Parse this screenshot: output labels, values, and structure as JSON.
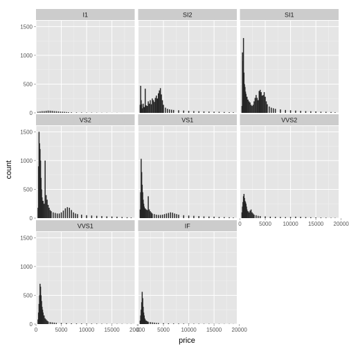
{
  "chart_data": {
    "type": "bar",
    "subtype": "faceted-histogram",
    "xlabel": "price",
    "ylabel": "count",
    "xlim": [
      0,
      19500
    ],
    "ylim": [
      0,
      1600
    ],
    "x_ticks": [
      "0",
      "5000",
      "10000",
      "15000",
      "20000"
    ],
    "y_ticks": [
      "0",
      "500",
      "1000",
      "1500"
    ],
    "layout": "3x3 facet grid",
    "colors": {
      "bars": "#252525",
      "panel_background": "#e5e5e5",
      "strip_background": "#cccccc",
      "grid": "#ffffff"
    },
    "facets": [
      {
        "label": "I1",
        "points": [
          [
            400,
            20
          ],
          [
            800,
            25
          ],
          [
            1200,
            30
          ],
          [
            1600,
            30
          ],
          [
            2000,
            35
          ],
          [
            2400,
            40
          ],
          [
            2800,
            38
          ],
          [
            3200,
            35
          ],
          [
            3600,
            30
          ],
          [
            4000,
            28
          ],
          [
            4400,
            25
          ],
          [
            4800,
            22
          ],
          [
            5200,
            20
          ],
          [
            5600,
            18
          ],
          [
            6000,
            15
          ],
          [
            6400,
            12
          ],
          [
            7000,
            10
          ],
          [
            8000,
            8
          ],
          [
            9000,
            7
          ],
          [
            10000,
            6
          ],
          [
            11000,
            5
          ],
          [
            12000,
            4
          ],
          [
            13000,
            3
          ],
          [
            14000,
            3
          ],
          [
            15000,
            2
          ],
          [
            16000,
            2
          ],
          [
            17000,
            1
          ]
        ]
      },
      {
        "label": "SI2",
        "points": [
          [
            400,
            140
          ],
          [
            500,
            470
          ],
          [
            600,
            220
          ],
          [
            700,
            150
          ],
          [
            800,
            80
          ],
          [
            1000,
            160
          ],
          [
            1200,
            100
          ],
          [
            1400,
            420
          ],
          [
            1600,
            130
          ],
          [
            1800,
            120
          ],
          [
            2000,
            200
          ],
          [
            2200,
            160
          ],
          [
            2400,
            220
          ],
          [
            2600,
            150
          ],
          [
            2800,
            250
          ],
          [
            3000,
            220
          ],
          [
            3200,
            190
          ],
          [
            3400,
            260
          ],
          [
            3600,
            300
          ],
          [
            3800,
            250
          ],
          [
            4000,
            340
          ],
          [
            4200,
            390
          ],
          [
            4400,
            430
          ],
          [
            4600,
            320
          ],
          [
            4800,
            220
          ],
          [
            5000,
            140
          ],
          [
            5400,
            90
          ],
          [
            5800,
            70
          ],
          [
            6200,
            60
          ],
          [
            6600,
            55
          ],
          [
            7000,
            50
          ],
          [
            8000,
            45
          ],
          [
            9000,
            40
          ],
          [
            10000,
            35
          ],
          [
            11000,
            30
          ],
          [
            12000,
            28
          ],
          [
            13000,
            25
          ],
          [
            14000,
            22
          ],
          [
            15000,
            20
          ],
          [
            16000,
            18
          ],
          [
            17000,
            15
          ],
          [
            18000,
            12
          ],
          [
            18800,
            10
          ]
        ]
      },
      {
        "label": "SI1",
        "points": [
          [
            400,
            120
          ],
          [
            500,
            1050
          ],
          [
            600,
            900
          ],
          [
            700,
            1300
          ],
          [
            800,
            700
          ],
          [
            900,
            500
          ],
          [
            1000,
            450
          ],
          [
            1100,
            370
          ],
          [
            1200,
            330
          ],
          [
            1400,
            280
          ],
          [
            1600,
            230
          ],
          [
            1800,
            200
          ],
          [
            2000,
            180
          ],
          [
            2200,
            140
          ],
          [
            2400,
            120
          ],
          [
            2600,
            140
          ],
          [
            2800,
            200
          ],
          [
            3000,
            260
          ],
          [
            3200,
            310
          ],
          [
            3400,
            260
          ],
          [
            3600,
            220
          ],
          [
            3800,
            380
          ],
          [
            4000,
            400
          ],
          [
            4200,
            360
          ],
          [
            4400,
            300
          ],
          [
            4600,
            310
          ],
          [
            4800,
            360
          ],
          [
            5000,
            280
          ],
          [
            5200,
            200
          ],
          [
            5400,
            150
          ],
          [
            5800,
            110
          ],
          [
            6200,
            90
          ],
          [
            6600,
            80
          ],
          [
            7000,
            70
          ],
          [
            8000,
            60
          ],
          [
            9000,
            50
          ],
          [
            10000,
            45
          ],
          [
            11000,
            40
          ],
          [
            12000,
            35
          ],
          [
            13000,
            30
          ],
          [
            14000,
            28
          ],
          [
            15000,
            25
          ],
          [
            16000,
            20
          ],
          [
            17000,
            18
          ],
          [
            18000,
            15
          ],
          [
            18800,
            10
          ]
        ]
      },
      {
        "label": "VS2",
        "points": [
          [
            400,
            180
          ],
          [
            500,
            900
          ],
          [
            600,
            1500
          ],
          [
            700,
            1300
          ],
          [
            800,
            1200
          ],
          [
            900,
            1000
          ],
          [
            1000,
            700
          ],
          [
            1100,
            500
          ],
          [
            1200,
            360
          ],
          [
            1400,
            300
          ],
          [
            1600,
            250
          ],
          [
            1800,
            1000
          ],
          [
            2000,
            400
          ],
          [
            2200,
            320
          ],
          [
            2400,
            230
          ],
          [
            2600,
            180
          ],
          [
            2800,
            140
          ],
          [
            3000,
            120
          ],
          [
            3400,
            100
          ],
          [
            3800,
            90
          ],
          [
            4200,
            80
          ],
          [
            4600,
            80
          ],
          [
            5000,
            100
          ],
          [
            5400,
            130
          ],
          [
            5800,
            170
          ],
          [
            6200,
            190
          ],
          [
            6600,
            180
          ],
          [
            7000,
            140
          ],
          [
            7400,
            100
          ],
          [
            7800,
            80
          ],
          [
            8200,
            70
          ],
          [
            9000,
            60
          ],
          [
            10000,
            50
          ],
          [
            11000,
            45
          ],
          [
            12000,
            40
          ],
          [
            13000,
            35
          ],
          [
            14000,
            30
          ],
          [
            15000,
            28
          ],
          [
            16000,
            25
          ],
          [
            17000,
            20
          ],
          [
            18000,
            15
          ],
          [
            18800,
            10
          ]
        ]
      },
      {
        "label": "VS1",
        "points": [
          [
            400,
            150
          ],
          [
            500,
            450
          ],
          [
            600,
            1030
          ],
          [
            700,
            800
          ],
          [
            800,
            580
          ],
          [
            900,
            450
          ],
          [
            1000,
            320
          ],
          [
            1100,
            250
          ],
          [
            1200,
            200
          ],
          [
            1400,
            170
          ],
          [
            1600,
            150
          ],
          [
            1800,
            140
          ],
          [
            2000,
            380
          ],
          [
            2200,
            150
          ],
          [
            2400,
            120
          ],
          [
            2600,
            100
          ],
          [
            2800,
            80
          ],
          [
            3200,
            70
          ],
          [
            3600,
            60
          ],
          [
            4000,
            55
          ],
          [
            4400,
            55
          ],
          [
            4800,
            60
          ],
          [
            5200,
            70
          ],
          [
            5600,
            80
          ],
          [
            6000,
            90
          ],
          [
            6400,
            100
          ],
          [
            6800,
            95
          ],
          [
            7200,
            80
          ],
          [
            7600,
            70
          ],
          [
            8000,
            60
          ],
          [
            9000,
            50
          ],
          [
            10000,
            45
          ],
          [
            11000,
            40
          ],
          [
            12000,
            35
          ],
          [
            13000,
            30
          ],
          [
            14000,
            28
          ],
          [
            15000,
            25
          ],
          [
            16000,
            20
          ],
          [
            17000,
            18
          ],
          [
            18000,
            15
          ],
          [
            18800,
            10
          ]
        ]
      },
      {
        "label": "VVS2",
        "points": [
          [
            400,
            100
          ],
          [
            500,
            200
          ],
          [
            600,
            280
          ],
          [
            700,
            380
          ],
          [
            800,
            420
          ],
          [
            900,
            350
          ],
          [
            1000,
            300
          ],
          [
            1100,
            280
          ],
          [
            1200,
            250
          ],
          [
            1300,
            200
          ],
          [
            1400,
            150
          ],
          [
            1600,
            120
          ],
          [
            1800,
            100
          ],
          [
            2000,
            130
          ],
          [
            2200,
            150
          ],
          [
            2400,
            100
          ],
          [
            2600,
            80
          ],
          [
            2800,
            60
          ],
          [
            3200,
            50
          ],
          [
            3600,
            40
          ],
          [
            4000,
            35
          ],
          [
            5000,
            30
          ],
          [
            6000,
            25
          ],
          [
            7000,
            22
          ],
          [
            8000,
            20
          ],
          [
            9000,
            18
          ],
          [
            10000,
            20
          ],
          [
            11000,
            25
          ],
          [
            12000,
            22
          ],
          [
            13000,
            18
          ],
          [
            14000,
            15
          ],
          [
            15000,
            12
          ],
          [
            16000,
            10
          ],
          [
            17000,
            8
          ],
          [
            18000,
            6
          ],
          [
            18800,
            5
          ]
        ]
      },
      {
        "label": "VVS1",
        "points": [
          [
            400,
            80
          ],
          [
            500,
            200
          ],
          [
            600,
            350
          ],
          [
            700,
            500
          ],
          [
            800,
            700
          ],
          [
            900,
            650
          ],
          [
            1000,
            500
          ],
          [
            1100,
            400
          ],
          [
            1200,
            300
          ],
          [
            1300,
            250
          ],
          [
            1400,
            200
          ],
          [
            1600,
            150
          ],
          [
            1800,
            100
          ],
          [
            2000,
            80
          ],
          [
            2200,
            60
          ],
          [
            2400,
            45
          ],
          [
            2800,
            35
          ],
          [
            3200,
            30
          ],
          [
            3600,
            25
          ],
          [
            4000,
            20
          ],
          [
            5000,
            18
          ],
          [
            6000,
            15
          ],
          [
            7000,
            12
          ],
          [
            8000,
            10
          ],
          [
            9000,
            10
          ],
          [
            10000,
            9
          ],
          [
            11000,
            8
          ],
          [
            12000,
            7
          ],
          [
            13000,
            6
          ],
          [
            14000,
            5
          ],
          [
            15000,
            5
          ],
          [
            16000,
            4
          ],
          [
            17000,
            4
          ],
          [
            18000,
            3
          ],
          [
            18800,
            3
          ]
        ]
      },
      {
        "label": "IF",
        "points": [
          [
            400,
            60
          ],
          [
            500,
            150
          ],
          [
            600,
            250
          ],
          [
            700,
            380
          ],
          [
            800,
            560
          ],
          [
            900,
            450
          ],
          [
            1000,
            300
          ],
          [
            1100,
            200
          ],
          [
            1200,
            150
          ],
          [
            1300,
            100
          ],
          [
            1400,
            80
          ],
          [
            1600,
            60
          ],
          [
            1800,
            50
          ],
          [
            2000,
            40
          ],
          [
            2400,
            35
          ],
          [
            2800,
            30
          ],
          [
            3200,
            25
          ],
          [
            3600,
            20
          ],
          [
            4000,
            18
          ],
          [
            5000,
            15
          ],
          [
            6000,
            12
          ],
          [
            7000,
            10
          ],
          [
            8000,
            9
          ],
          [
            9000,
            8
          ],
          [
            10000,
            7
          ],
          [
            11000,
            6
          ],
          [
            12000,
            6
          ],
          [
            13000,
            5
          ],
          [
            14000,
            5
          ],
          [
            15000,
            4
          ],
          [
            16000,
            4
          ],
          [
            17000,
            3
          ],
          [
            18000,
            3
          ],
          [
            18800,
            2
          ]
        ]
      }
    ]
  }
}
